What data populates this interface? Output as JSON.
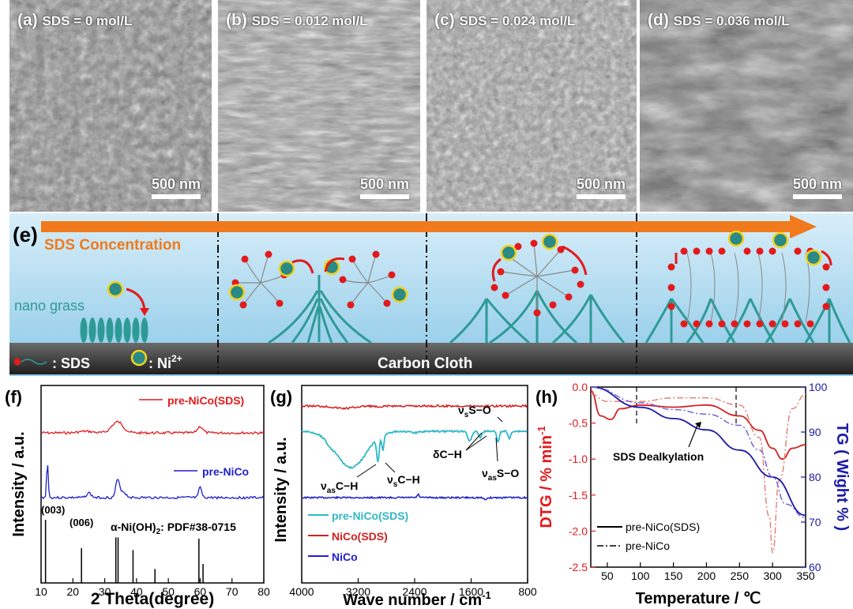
{
  "sem_panels": [
    {
      "label": "(a)",
      "title": "SDS = 0 mol/L",
      "scale": "500 nm"
    },
    {
      "label": "(b)",
      "title": "SDS = 0.012 mol/L",
      "scale": "500 nm"
    },
    {
      "label": "(c)",
      "title": "SDS = 0.024 mol/L",
      "scale": "500 nm"
    },
    {
      "label": "(d)",
      "title": "SDS = 0.036 mol/L",
      "scale": "500 nm"
    }
  ],
  "schematic": {
    "label": "(e)",
    "arrow_text": "SDS Concentration",
    "nano_grass": "nano grass",
    "legend_sds": ": SDS",
    "legend_ni": ": Ni",
    "legend_ni_sup": "2+",
    "substrate": "Carbon Cloth",
    "colors": {
      "sky": "#9fd4ee",
      "grass": "#2e9a96",
      "arrow": "#f07a1c",
      "head": "#e31a1c",
      "ni": "#2a8a86",
      "ni_ring": "#f2d21a",
      "cloth": "#303030"
    }
  },
  "panel_f": {
    "label": "(f)",
    "series1": "pre-NiCo(SDS)",
    "series2": "pre-NiCo",
    "peak_003": "(003)",
    "peak_006": "(006)",
    "ref": "α-Ni(OH)",
    "ref_sub": "2",
    "ref2": ": PDF#38-0715",
    "ylabel": "Intensity / a.u.",
    "xlabel": "2 Theta(degree)",
    "xticks": [
      "10",
      "20",
      "30",
      "40",
      "50",
      "60",
      "70",
      "80"
    ]
  },
  "panel_g": {
    "label": "(g)",
    "ylabel": "Intensity / a.u.",
    "xlabel": "Wave number / cm",
    "xlabel_sup": "-1",
    "xticks": [
      "4000",
      "3200",
      "2400",
      "1600",
      "800"
    ],
    "legend": [
      "pre-NiCo(SDS)",
      "NiCo(SDS)",
      "NiCo"
    ],
    "ann_vasCH": "ν",
    "ann_vasCH_sub": "as",
    "ann_vasCH_t": "C−H",
    "ann_vsCH": "ν",
    "ann_vsCH_sub": "s",
    "ann_vsCH_t": "C−H",
    "ann_dCH": "δC−H",
    "ann_vsSO": "ν",
    "ann_vsSO_sub": "s",
    "ann_vsSO_t": "S−O",
    "ann_vasSO": "ν",
    "ann_vasSO_sub": "as",
    "ann_vasSO_t": "S−O"
  },
  "panel_h": {
    "label": "(h)",
    "ylabel_left": "DTG / % min",
    "ylabel_left_sup": "-1",
    "ylabel_right": "TG ( Wight % )",
    "xlabel": "Temperature / ℃",
    "xticks": [
      "50",
      "100",
      "150",
      "200",
      "250",
      "300",
      "350"
    ],
    "yticks_left": [
      "0.0",
      "-0.5",
      "-1.0",
      "-1.5",
      "-2.0",
      "-2.5"
    ],
    "yticks_right": [
      "100",
      "90",
      "80",
      "70",
      "60"
    ],
    "annotation": "SDS Dealkylation",
    "legend": [
      "pre-NiCo(SDS)",
      "pre-NiCo"
    ]
  },
  "chart_data": [
    {
      "type": "line",
      "panel": "f",
      "xlabel": "2 Theta(degree)",
      "ylabel": "Intensity / a.u.",
      "xlim": [
        10,
        80
      ],
      "series": [
        {
          "name": "pre-NiCo(SDS)",
          "color": "#e31a1c"
        },
        {
          "name": "pre-NiCo",
          "color": "#1f1fd0"
        }
      ],
      "reference_sticks": {
        "x": [
          11.4,
          22.7,
          33.5,
          34.2,
          38.9,
          45.8,
          59.6,
          60.9
        ],
        "h": [
          1.0,
          0.55,
          0.72,
          0.72,
          0.52,
          0.22,
          0.7,
          0.3
        ]
      }
    },
    {
      "type": "line",
      "panel": "g",
      "xlabel": "Wave number / cm-1",
      "ylabel": "Intensity / a.u.",
      "xlim": [
        4000,
        800
      ],
      "series": [
        {
          "name": "pre-NiCo(SDS)",
          "color": "#2fb8c8"
        },
        {
          "name": "NiCo(SDS)",
          "color": "#d42020"
        },
        {
          "name": "NiCo",
          "color": "#1f1fd0"
        }
      ]
    },
    {
      "type": "line",
      "panel": "h",
      "xlabel": "Temperature / ℃",
      "ylabel": "DTG / % min-1",
      "ylabel2": "TG ( Wight % )",
      "xlim": [
        25,
        350
      ],
      "ylim": [
        -2.5,
        0
      ],
      "ylim2": [
        60,
        100
      ],
      "series": [
        {
          "name": "pre-NiCo(SDS) DTG",
          "color": "#d42020",
          "x": [
            25,
            40,
            55,
            70,
            100,
            150,
            200,
            250,
            280,
            300,
            315,
            330,
            350
          ],
          "y": [
            -0.05,
            -0.4,
            -0.45,
            -0.3,
            -0.25,
            -0.28,
            -0.25,
            -0.4,
            -0.6,
            -0.85,
            -1.0,
            -0.85,
            -0.8
          ]
        },
        {
          "name": "pre-NiCo DTG",
          "color": "#e87b70",
          "x": [
            25,
            50,
            100,
            150,
            200,
            250,
            280,
            295,
            300,
            310,
            330,
            350
          ],
          "y": [
            -0.1,
            -0.2,
            -0.2,
            -0.15,
            -0.15,
            -0.25,
            -0.7,
            -1.8,
            -2.3,
            -1.3,
            -0.3,
            -0.1
          ]
        },
        {
          "name": "pre-NiCo(SDS) TG",
          "color": "#1a1aa8",
          "x": [
            25,
            100,
            150,
            200,
            250,
            300,
            350
          ],
          "y": [
            100,
            95.5,
            93,
            90.5,
            86,
            80,
            71.5
          ]
        },
        {
          "name": "pre-NiCo TG",
          "color": "#6d5ad8",
          "x": [
            25,
            100,
            150,
            200,
            250,
            280,
            300,
            320,
            350
          ],
          "y": [
            100,
            96.5,
            95,
            94,
            91.5,
            86,
            80,
            74,
            71
          ]
        }
      ]
    }
  ]
}
